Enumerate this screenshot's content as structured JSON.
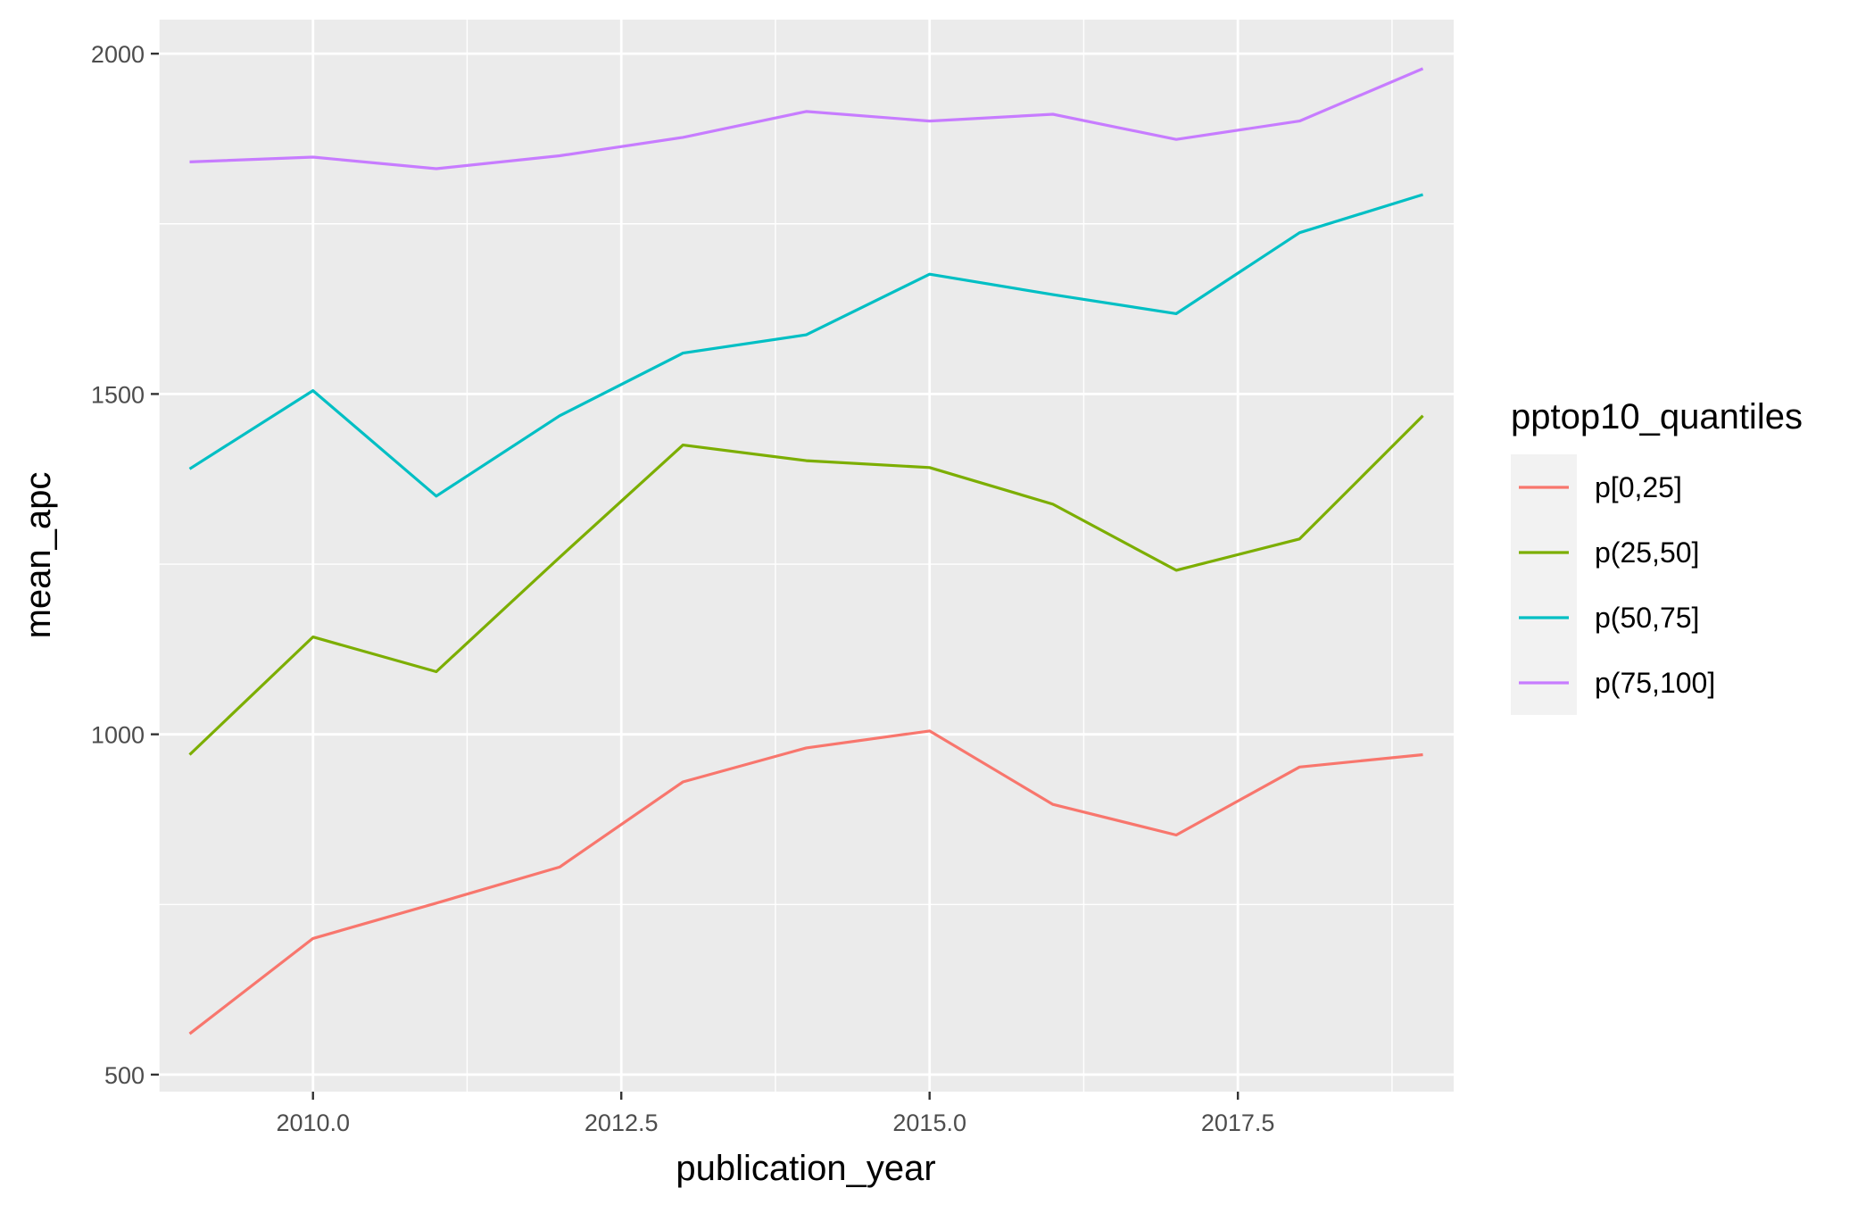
{
  "chart_data": {
    "type": "line",
    "xlabel": "publication_year",
    "ylabel": "mean_apc",
    "x": [
      2009,
      2010,
      2011,
      2012,
      2013,
      2014,
      2015,
      2016,
      2017,
      2018,
      2019
    ],
    "xlim": [
      2008.75,
      2019.25
    ],
    "ylim": [
      475,
      2050
    ],
    "x_ticks": [
      {
        "value": 2010.0,
        "label": "2010.0"
      },
      {
        "value": 2012.5,
        "label": "2012.5"
      },
      {
        "value": 2015.0,
        "label": "2015.0"
      },
      {
        "value": 2017.5,
        "label": "2017.5"
      }
    ],
    "y_ticks": [
      {
        "value": 500,
        "label": "500"
      },
      {
        "value": 1000,
        "label": "1000"
      },
      {
        "value": 1500,
        "label": "1500"
      },
      {
        "value": 2000,
        "label": "2000"
      }
    ],
    "grid": true,
    "legend": {
      "title": "pptop10_quantiles",
      "position": "right"
    },
    "series": [
      {
        "name": "p[0,25]",
        "color": "#F8766D",
        "values": [
          560,
          700,
          752,
          805,
          930,
          980,
          1005,
          897,
          852,
          952,
          970
        ]
      },
      {
        "name": "p(25,50]",
        "color": "#7CAE00",
        "values": [
          970,
          1143,
          1092,
          1260,
          1425,
          1402,
          1392,
          1338,
          1241,
          1287,
          1468
        ]
      },
      {
        "name": "p(50,75]",
        "color": "#00BFC4",
        "values": [
          1390,
          1505,
          1350,
          1468,
          1560,
          1587,
          1676,
          1646,
          1618,
          1737,
          1793
        ]
      },
      {
        "name": "p(75,100]",
        "color": "#C77CFF",
        "values": [
          1841,
          1848,
          1831,
          1850,
          1877,
          1915,
          1901,
          1911,
          1874,
          1901,
          1978
        ]
      }
    ]
  }
}
